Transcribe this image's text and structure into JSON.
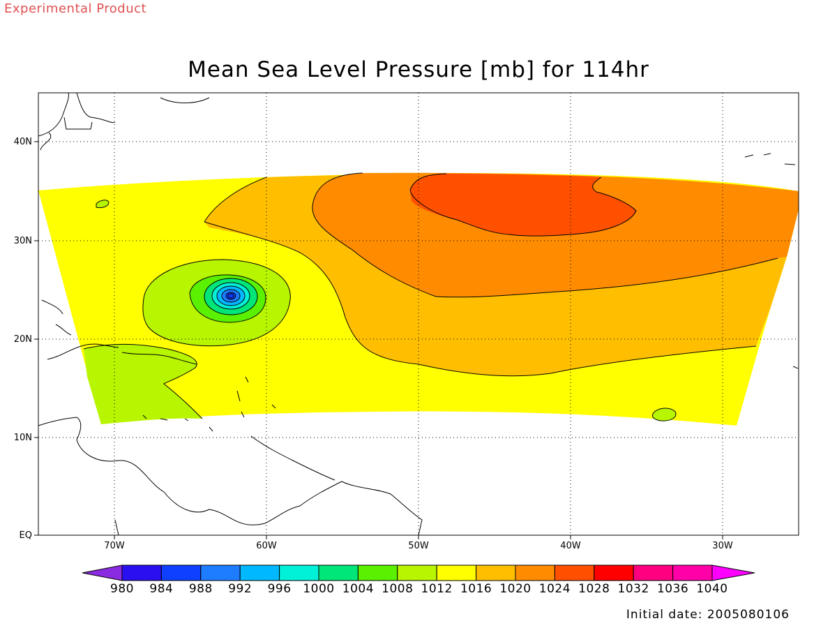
{
  "banner": "Experimental Product",
  "title": "Mean Sea Level Pressure [mb] for 114hr",
  "footer": "Initial date: 2005080106",
  "lat_labels": [
    "40N",
    "30N",
    "20N",
    "10N",
    "EQ"
  ],
  "lon_labels": [
    "70W",
    "60W",
    "50W",
    "40W",
    "30W"
  ],
  "colorbar": {
    "values": [
      "980",
      "984",
      "988",
      "992",
      "996",
      "1000",
      "1004",
      "1008",
      "1012",
      "1016",
      "1020",
      "1024",
      "1028",
      "1032",
      "1036",
      "1040"
    ],
    "colors": [
      "#8a2be2",
      "#2a10f0",
      "#1040ff",
      "#1e7dff",
      "#00b8ff",
      "#00f0d8",
      "#00e678",
      "#5af000",
      "#b8f500",
      "#ffff00",
      "#ffbf00",
      "#ff8c00",
      "#ff5000",
      "#ff0000",
      "#ff0080",
      "#ff00a8",
      "#ff00ff"
    ]
  },
  "map": {
    "colors": {
      "c1012": "#ffff00",
      "c1008": "#b8f500",
      "c1004": "#5af000",
      "c1000": "#00e678",
      "c996": "#00f0d8",
      "c992": "#00b8ff",
      "c988": "#1e7dff",
      "c984": "#1040ff",
      "c1016": "#ffbf00",
      "c1020": "#ff8c00",
      "c1024": "#ff5000"
    }
  }
}
